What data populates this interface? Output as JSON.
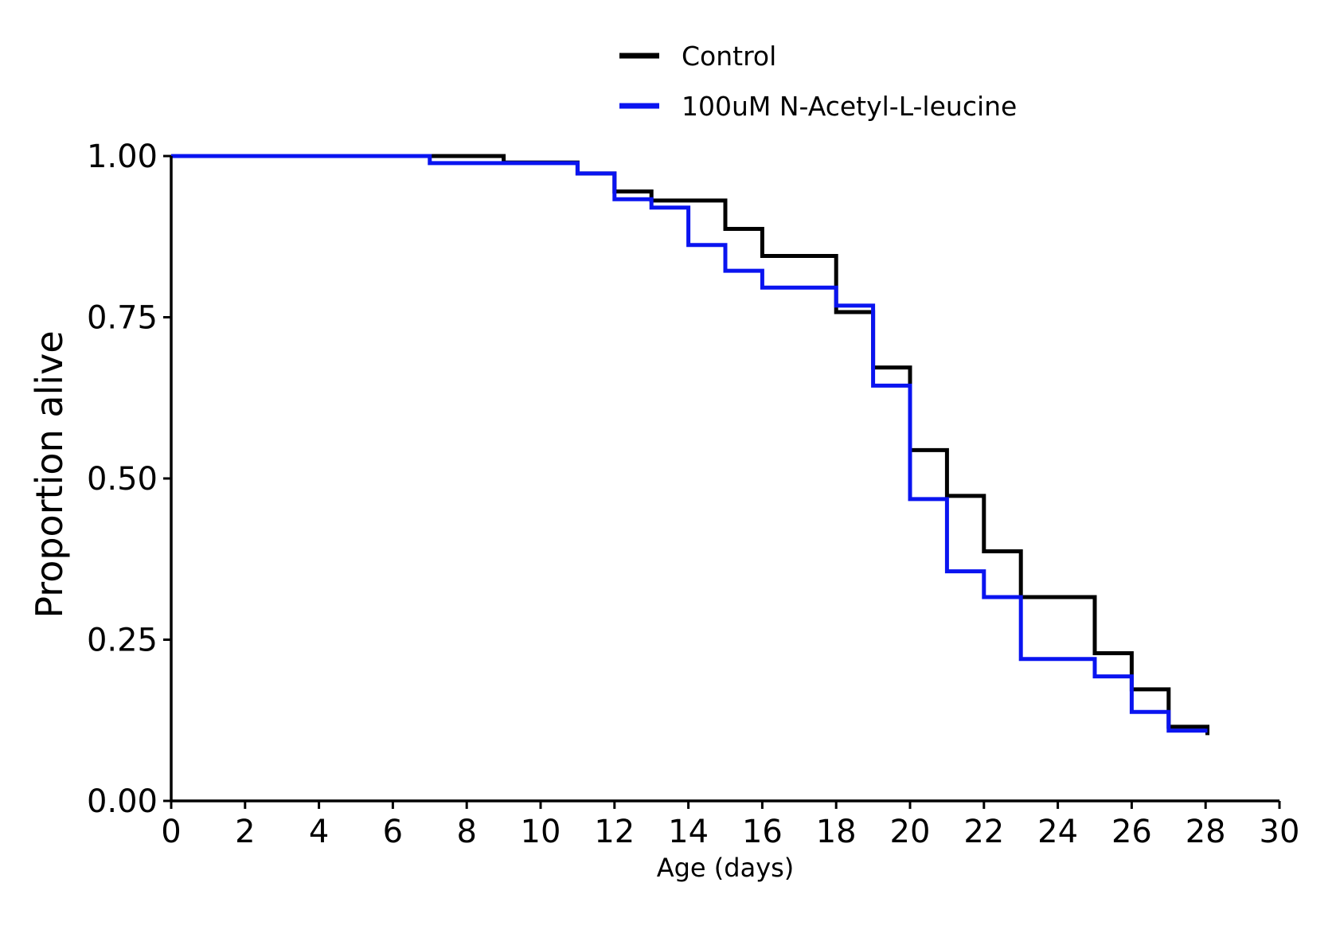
{
  "chart_data": {
    "type": "line",
    "step": "post",
    "xlabel": "Age (days)",
    "ylabel": "Proportion alive",
    "xlim": [
      0,
      30
    ],
    "ylim": [
      0,
      1
    ],
    "xticks": [
      0,
      2,
      4,
      6,
      8,
      10,
      12,
      14,
      16,
      18,
      20,
      22,
      24,
      26,
      28,
      30
    ],
    "yticks": [
      0.0,
      0.25,
      0.5,
      0.75,
      1.0
    ],
    "xtick_labels": [
      "0",
      "2",
      "4",
      "6",
      "8",
      "10",
      "12",
      "14",
      "16",
      "18",
      "20",
      "22",
      "24",
      "26",
      "28",
      "30"
    ],
    "ytick_labels": [
      "0.00",
      "0.25",
      "0.50",
      "0.75",
      "1.00"
    ],
    "grid": false,
    "legend_position": "top",
    "series": [
      {
        "name": "Control",
        "color": "#000000",
        "x": [
          0,
          9,
          11,
          12,
          13,
          15,
          16,
          18,
          19,
          20,
          21,
          22,
          23,
          25,
          26,
          27,
          28.05
        ],
        "y": [
          1.0,
          0.99,
          0.973,
          0.945,
          0.931,
          0.887,
          0.845,
          0.758,
          0.672,
          0.544,
          0.473,
          0.387,
          0.316,
          0.229,
          0.173,
          0.115,
          0.102
        ]
      },
      {
        "name": "100uM N-Acetyl-L-leucine",
        "color": "#0a14f0",
        "x": [
          0,
          7,
          11,
          12,
          13,
          14,
          15,
          16,
          18,
          19,
          20,
          21,
          22,
          23,
          25,
          26,
          27,
          28.05
        ],
        "y": [
          1.0,
          0.989,
          0.973,
          0.933,
          0.92,
          0.862,
          0.822,
          0.796,
          0.768,
          0.644,
          0.468,
          0.356,
          0.316,
          0.22,
          0.193,
          0.138,
          0.109,
          0.109
        ]
      }
    ]
  }
}
